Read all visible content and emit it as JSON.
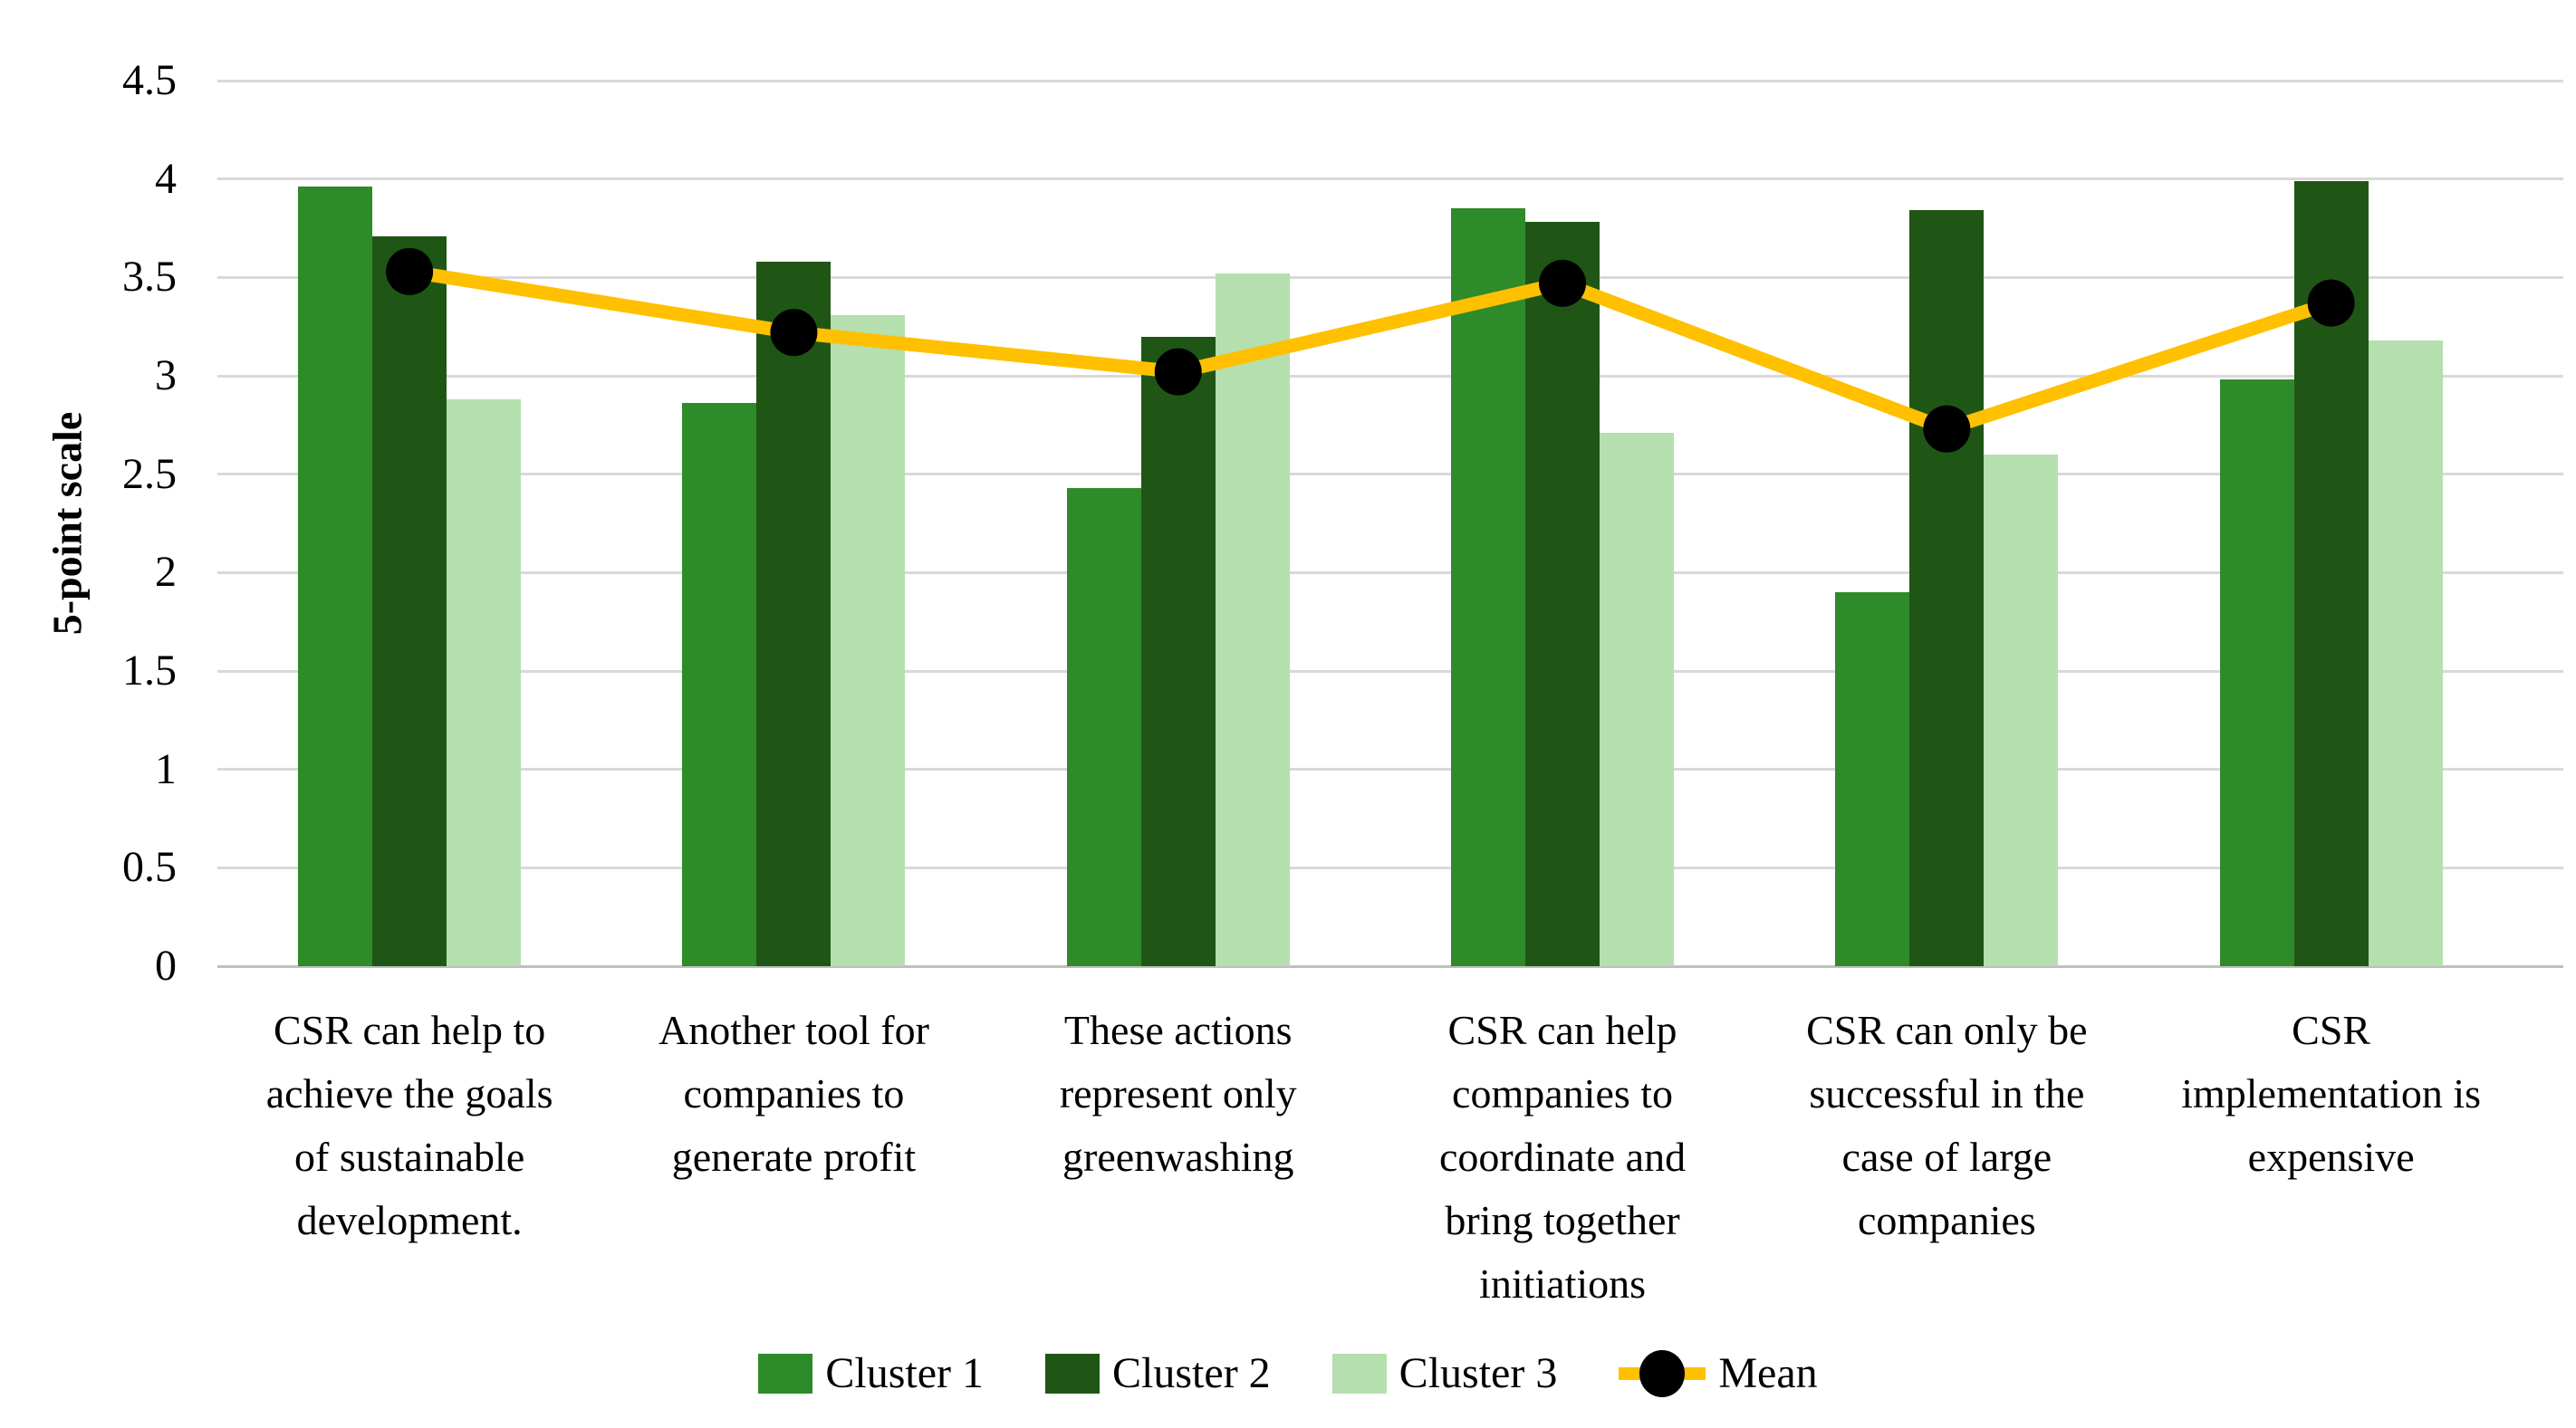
{
  "figure": {
    "background": "#FFFFFF",
    "text_color": "#000000",
    "gridline_color": "#D9D9D9",
    "axis_line_color": "#BFBFBF"
  },
  "chart_data": {
    "type": "bar",
    "title": "",
    "xlabel": "",
    "ylabel": "5-point scale",
    "ylim": [
      0,
      4.5
    ],
    "grid": true,
    "legend_position": "bottom",
    "categories": [
      "CSR can help to\nachieve the goals\nof sustainable\ndevelopment.",
      "Another tool for\ncompanies to\ngenerate profit",
      "These actions\nrepresent only\ngreenwashing",
      "CSR can help\ncompanies to\ncoordinate and\nbring together\ninitiations",
      "CSR can only be\nsuccessful in the\ncase of large\ncompanies",
      "CSR\nimplementation is\nexpensive"
    ],
    "ytick_values": [
      0,
      0.5,
      1,
      1.5,
      2,
      2.5,
      3,
      3.5,
      4,
      4.5
    ],
    "ytick_labels": [
      "0",
      "0.5",
      "1",
      "1.5",
      "2",
      "2.5",
      "3",
      "3.5",
      "4",
      "4.5"
    ],
    "series": [
      {
        "name": "Cluster 1",
        "type": "bar",
        "color": "#2E8B29",
        "values": [
          3.96,
          2.86,
          2.43,
          3.85,
          1.9,
          2.98
        ]
      },
      {
        "name": "Cluster 2",
        "type": "bar",
        "color": "#1F5615",
        "values": [
          3.71,
          3.58,
          3.2,
          3.78,
          3.84,
          3.99
        ]
      },
      {
        "name": "Cluster 3",
        "type": "bar",
        "color": "#B5DFAF",
        "values": [
          2.88,
          3.31,
          3.52,
          2.71,
          2.6,
          3.18
        ]
      }
    ],
    "line_series": {
      "name": "Mean",
      "type": "line",
      "color": "#FFC000",
      "marker": "circle",
      "marker_color": "#000000",
      "values": [
        3.53,
        3.22,
        3.02,
        3.47,
        2.73,
        3.37
      ]
    }
  }
}
